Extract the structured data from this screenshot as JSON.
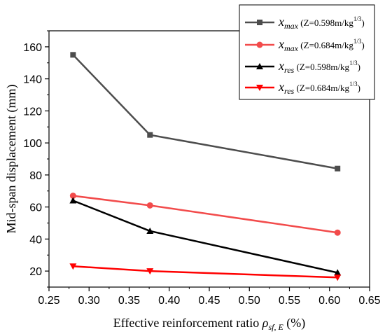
{
  "chart_data": {
    "type": "line",
    "xlabel": "Effective reinforcement ratio",
    "xlabel_symbol": {
      "base": "ρ",
      "subscript": "sf, E"
    },
    "xlabel_unit": "(%)",
    "ylabel": "Mid-span displacement (mm)",
    "xlim": [
      0.25,
      0.65
    ],
    "ylim": [
      10,
      170
    ],
    "xticks": [
      "0.25",
      "0.30",
      "0.35",
      "0.40",
      "0.45",
      "0.50",
      "0.55",
      "0.60",
      "0.65"
    ],
    "yticks": [
      "20",
      "40",
      "60",
      "80",
      "100",
      "120",
      "140",
      "160"
    ],
    "grid": false,
    "legend_position": "top-right",
    "x": [
      0.28,
      0.376,
      0.61
    ],
    "series": [
      {
        "name": "x_max (Z=0.598m/kg^1/3)",
        "var": "x",
        "sub": "max",
        "cond": "Z=0.598m/kg",
        "sup": "1/3",
        "color": "#4d4d4d",
        "marker": "square",
        "values": [
          155,
          105,
          84
        ]
      },
      {
        "name": "x_max (Z=0.684m/kg^1/3)",
        "var": "x",
        "sub": "max",
        "cond": "Z=0.684m/kg",
        "sup": "1/3",
        "color": "#f24b4b",
        "marker": "circle",
        "values": [
          67,
          61,
          44
        ]
      },
      {
        "name": "x_res (Z=0.598m/kg^1/3)",
        "var": "x",
        "sub": "res",
        "cond": "Z=0.598m/kg",
        "sup": "1/3",
        "color": "#000000",
        "marker": "triangle-up",
        "values": [
          64,
          45,
          19
        ]
      },
      {
        "name": "x_res (Z=0.684m/kg^1/3)",
        "var": "x",
        "sub": "res",
        "cond": "Z=0.684m/kg",
        "sup": "1/3",
        "color": "#ff0000",
        "marker": "triangle-down",
        "values": [
          23,
          20,
          16
        ]
      }
    ]
  }
}
